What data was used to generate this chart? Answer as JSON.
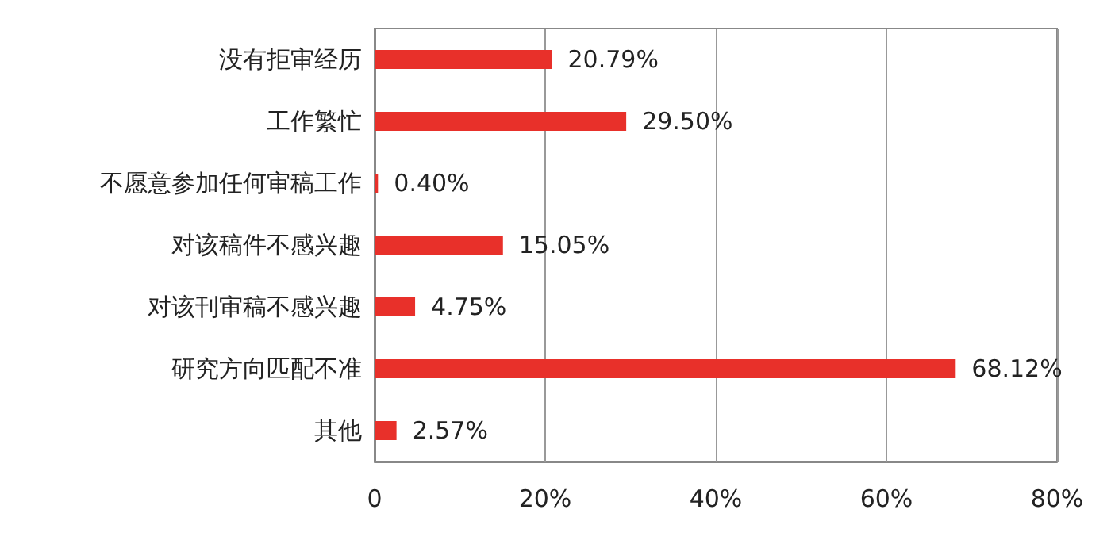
{
  "chart_data": {
    "type": "bar",
    "orientation": "horizontal",
    "categories": [
      "没有拒审经历",
      "工作繁忙",
      "不愿意参加任何审稿工作",
      "对该稿件不感兴趣",
      "对该刊审稿不感兴趣",
      "研究方向匹配不准",
      "其他"
    ],
    "values": [
      20.79,
      29.5,
      0.4,
      15.05,
      4.75,
      68.12,
      2.57
    ],
    "value_labels": [
      "20.79%",
      "29.50%",
      "0.40%",
      "15.05%",
      "4.75%",
      "68.12%",
      "2.57%"
    ],
    "color": "#e8302a",
    "xlim": [
      0,
      80
    ],
    "xticks": [
      {
        "value": 0,
        "label": "0"
      },
      {
        "value": 20,
        "label": "20%"
      },
      {
        "value": 40,
        "label": "40%"
      },
      {
        "value": 60,
        "label": "60%"
      },
      {
        "value": 80,
        "label": "80%"
      }
    ],
    "grid": "x"
  }
}
